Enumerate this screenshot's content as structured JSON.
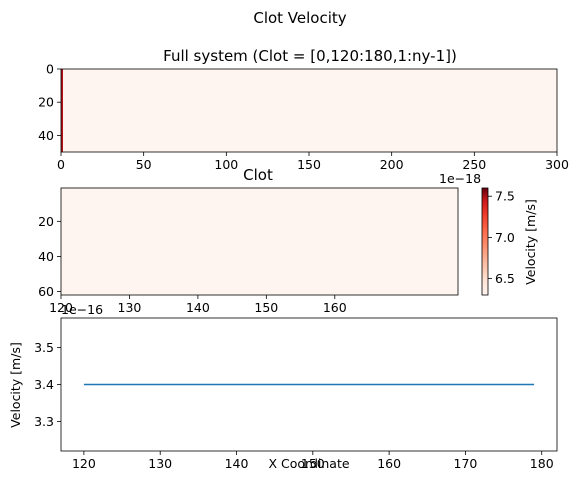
{
  "figure": {
    "suptitle": "Clot Velocity"
  },
  "chart_data": [
    {
      "type": "heatmap",
      "title": "Full system (Clot = [0,120:180,1:ny-1])",
      "xlabel": "",
      "ylabel": "",
      "xlim": [
        0,
        300
      ],
      "ylim": [
        50,
        0
      ],
      "x_ticks": [
        "0",
        "50",
        "100",
        "150",
        "200",
        "250",
        "300"
      ],
      "y_ticks": [
        "0",
        "20",
        "40"
      ],
      "colormap": "Reds",
      "fill_color": "#fff5f0",
      "edge_color": "#b31117"
    },
    {
      "type": "heatmap",
      "title": "Clot",
      "xlabel": "",
      "ylabel": "",
      "xlim": [
        120,
        178
      ],
      "ylim": [
        62,
        1
      ],
      "x_ticks": [
        "120",
        "130",
        "140",
        "150",
        "160"
      ],
      "y_ticks": [
        "20",
        "40",
        "60"
      ],
      "colormap": "Reds",
      "fill_color": "#fff5f0",
      "colorbar": {
        "label": "Velocity [m/s]",
        "ticks": [
          "6.5",
          "7.0",
          "7.5"
        ],
        "values": [
          6.5,
          7.0,
          7.5
        ],
        "range": [
          6.3,
          7.6
        ],
        "offset_text": "1e−18"
      }
    },
    {
      "type": "line",
      "title": "",
      "xlabel": "X Coordinate",
      "ylabel": "Velocity [m/s]",
      "xlim": [
        117,
        182
      ],
      "ylim": [
        3.22,
        3.58
      ],
      "x_ticks": [
        "120",
        "130",
        "140",
        "150",
        "160",
        "170",
        "180"
      ],
      "y_ticks": [
        "3.3",
        "3.4",
        "3.5"
      ],
      "offset_text": "1e−16",
      "series": [
        {
          "x": [
            120,
            179
          ],
          "y": [
            3.4,
            3.4
          ],
          "color": "#1f77b4"
        }
      ]
    }
  ]
}
